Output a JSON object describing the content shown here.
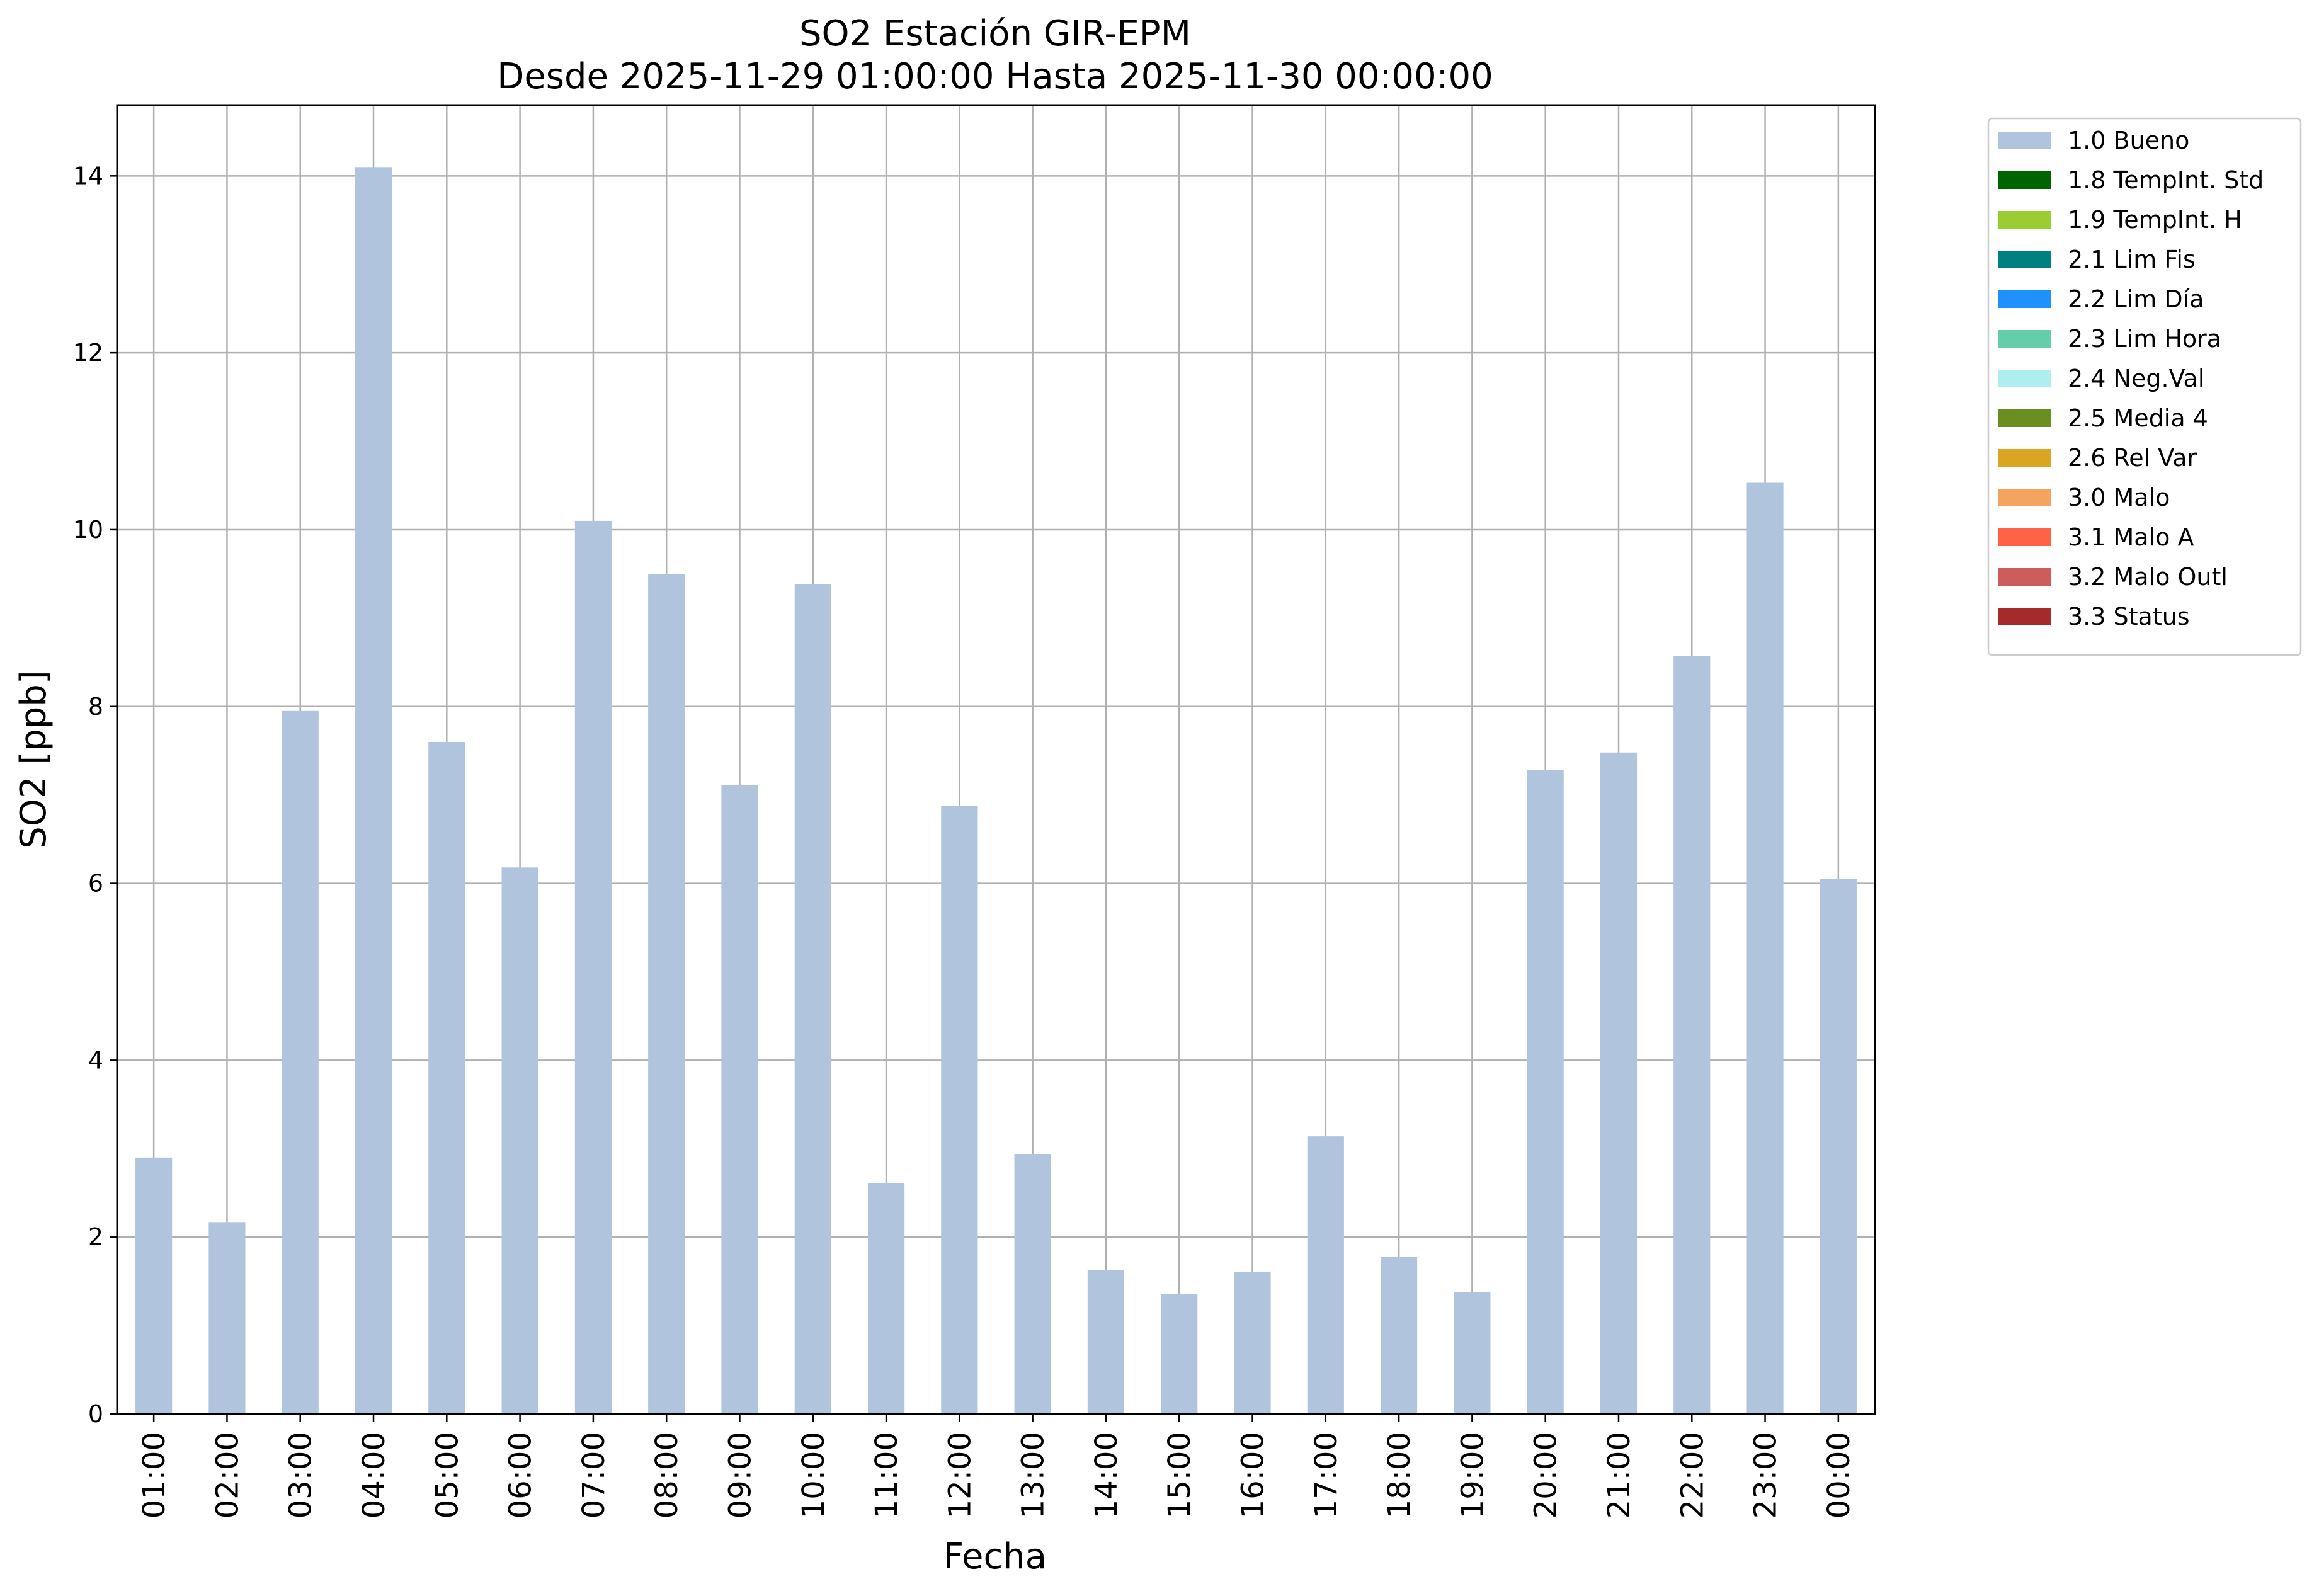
{
  "chart_data": {
    "type": "bar",
    "title": "SO2 Estación GIR-EPM",
    "subtitle": "Desde 2025-11-29 01:00:00 Hasta 2025-11-30 00:00:00",
    "xlabel": "Fecha",
    "ylabel": "SO2 [ppb]",
    "ylim": [
      0,
      14.8
    ],
    "yticks": [
      "0",
      "2",
      "4",
      "6",
      "8",
      "10",
      "12",
      "14"
    ],
    "grid": true,
    "legend_position": "outside-top-right",
    "categories": [
      "01:00",
      "02:00",
      "03:00",
      "04:00",
      "05:00",
      "06:00",
      "07:00",
      "08:00",
      "09:00",
      "10:00",
      "11:00",
      "12:00",
      "13:00",
      "14:00",
      "15:00",
      "16:00",
      "17:00",
      "18:00",
      "19:00",
      "20:00",
      "21:00",
      "22:00",
      "23:00",
      "00:00"
    ],
    "series": [
      {
        "name": "1.0 Bueno",
        "color": "#b0c4de",
        "values": [
          2.9,
          2.17,
          7.95,
          14.1,
          7.6,
          6.18,
          10.1,
          9.5,
          7.11,
          9.38,
          2.61,
          6.88,
          2.94,
          1.63,
          1.36,
          1.61,
          3.14,
          1.78,
          1.38,
          7.28,
          7.48,
          8.57,
          10.53,
          6.05
        ]
      }
    ],
    "legend": [
      {
        "label": "1.0 Bueno",
        "color": "#b0c4de"
      },
      {
        "label": "1.8 TempInt. Std",
        "color": "#006400"
      },
      {
        "label": "1.9 TempInt. H",
        "color": "#9acd32"
      },
      {
        "label": "2.1 Lim Fis",
        "color": "#008080"
      },
      {
        "label": "2.2 Lim Día",
        "color": "#1e90ff"
      },
      {
        "label": "2.3 Lim Hora",
        "color": "#66cdaa"
      },
      {
        "label": "2.4 Neg.Val",
        "color": "#afeeee"
      },
      {
        "label": "2.5 Media 4",
        "color": "#6b8e23"
      },
      {
        "label": "2.6 Rel Var",
        "color": "#daa520"
      },
      {
        "label": "3.0 Malo",
        "color": "#f4a460"
      },
      {
        "label": "3.1 Malo A",
        "color": "#ff6347"
      },
      {
        "label": "3.2 Malo Outl",
        "color": "#cd5c5c"
      },
      {
        "label": "3.3 Status",
        "color": "#a52a2a"
      }
    ]
  }
}
